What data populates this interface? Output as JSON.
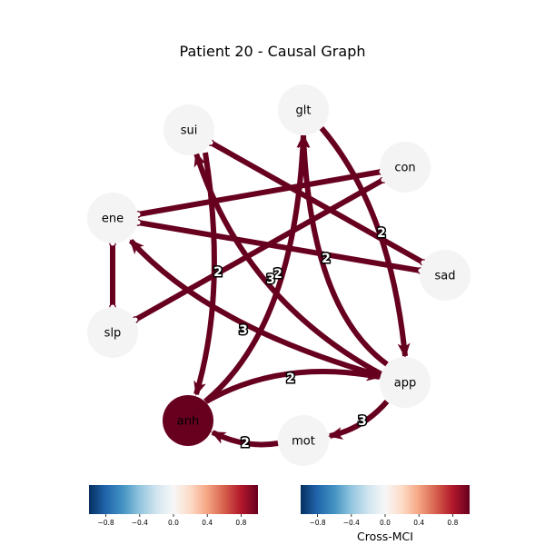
{
  "title": "Patient 20 - Causal Graph",
  "colors": {
    "edge": "#67001f",
    "node_fill": "#f4f4f4",
    "node_active_fill": "#67001f",
    "edge_label_text": "#ffffff",
    "edge_label_outline": "#000000"
  },
  "nodes": [
    {
      "id": "sui",
      "label": "sui",
      "active": false
    },
    {
      "id": "glt",
      "label": "glt",
      "active": false
    },
    {
      "id": "con",
      "label": "con",
      "active": false
    },
    {
      "id": "ene",
      "label": "ene",
      "active": false
    },
    {
      "id": "sad",
      "label": "sad",
      "active": false
    },
    {
      "id": "slp",
      "label": "slp",
      "active": false
    },
    {
      "id": "app",
      "label": "app",
      "active": false
    },
    {
      "id": "anh",
      "label": "anh",
      "active": true
    },
    {
      "id": "mot",
      "label": "mot",
      "active": false
    }
  ],
  "edges": [
    {
      "from": "ene",
      "to": "con",
      "label": "",
      "style": "undirected"
    },
    {
      "from": "ene",
      "to": "sad",
      "label": "",
      "style": "undirected"
    },
    {
      "from": "sui",
      "to": "sad",
      "label": "",
      "style": "undirected"
    },
    {
      "from": "slp",
      "to": "con",
      "label": "",
      "style": "undirected"
    },
    {
      "from": "ene",
      "to": "slp",
      "label": "",
      "style": "undirected"
    },
    {
      "from": "glt",
      "to": "app",
      "label": "2",
      "style": "directed"
    },
    {
      "from": "app",
      "to": "glt",
      "label": "2",
      "style": "directed"
    },
    {
      "from": "anh",
      "to": "glt",
      "label": "2",
      "style": "directed"
    },
    {
      "from": "app",
      "to": "sui",
      "label": "3",
      "style": "directed"
    },
    {
      "from": "sui",
      "to": "anh",
      "label": "2",
      "style": "directed"
    },
    {
      "from": "app",
      "to": "ene",
      "label": "3",
      "style": "directed"
    },
    {
      "from": "anh",
      "to": "app",
      "label": "2",
      "style": "directed"
    },
    {
      "from": "app",
      "to": "mot",
      "label": "3",
      "style": "directed"
    },
    {
      "from": "mot",
      "to": "anh",
      "label": "2",
      "style": "directed"
    }
  ],
  "colorbars": [
    {
      "ticks": [
        "−0.8",
        "−0.4",
        "0.0",
        "0.4",
        "0.8"
      ],
      "label": ""
    },
    {
      "ticks": [
        "−0.8",
        "−0.4",
        "0.0",
        "0.4",
        "0.8"
      ],
      "label": "Cross-MCI"
    }
  ]
}
